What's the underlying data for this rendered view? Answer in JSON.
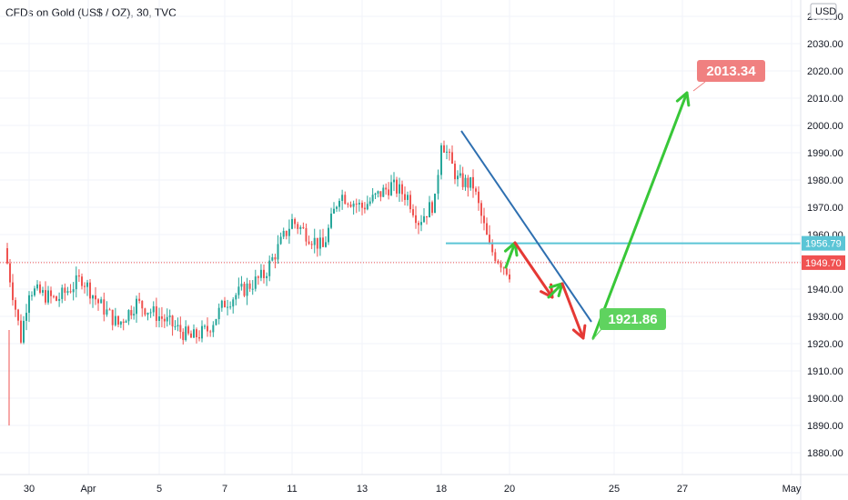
{
  "header": {
    "symbol_title": "CFDs on Gold (US$ / OZ), 30, TVC"
  },
  "currency_badge": "USD",
  "colors": {
    "up_candle": "#26a69a",
    "down_candle": "#ef5350",
    "up_arrow": "#38c738",
    "down_arrow": "#e53935",
    "trendline": "#2e6fb0",
    "hline": "#5bc5d6",
    "last_price_tag": "#f05252",
    "level_tag": "#5bc5d6",
    "target_high_tag": "#f08080",
    "target_low_tag": "#5fd35f"
  },
  "chart_data": {
    "type": "candlestick",
    "ylim": [
      1872,
      2046
    ],
    "y_ticks": [
      1880,
      1890,
      1900,
      1910,
      1920,
      1930,
      1940,
      1950,
      1960,
      1970,
      1980,
      1990,
      2000,
      2010,
      2020,
      2030,
      2040
    ],
    "y_tick_labels": [
      "1880.00",
      "1890.00",
      "1900.00",
      "1910.00",
      "1920.00",
      "1930.00",
      "1940.00",
      "1950.00",
      "1960.00",
      "1970.00",
      "1980.00",
      "1990.00",
      "2000.00",
      "2010.00",
      "2020.00",
      "2030.00",
      "2040.00"
    ],
    "x_labels": [
      "30",
      "Apr",
      "5",
      "7",
      "11",
      "13",
      "18",
      "20",
      "25",
      "27",
      "May"
    ],
    "price_path": [
      [
        "Mar 29",
        1955,
        1922
      ],
      [
        "Mar 29b",
        1890,
        1922
      ],
      [
        "Mar 30",
        1925,
        1940
      ],
      [
        "Mar 31",
        1938,
        1936
      ],
      [
        "Apr 1",
        1930,
        1944
      ],
      [
        "Apr 1b",
        1948,
        1935
      ],
      [
        "Apr 3",
        1932,
        1927
      ],
      [
        "Apr 4",
        1925,
        1935
      ],
      [
        "Apr 5",
        1933,
        1930
      ],
      [
        "Apr 6",
        1930,
        1922
      ],
      [
        "Apr 6b",
        1922,
        1925
      ],
      [
        "Apr 7",
        1925,
        1935
      ],
      [
        "Apr 10",
        1935,
        1945
      ],
      [
        "Apr 11",
        1948,
        1965
      ],
      [
        "Apr 12",
        1962,
        1955
      ],
      [
        "Apr 12b",
        1957,
        1975
      ],
      [
        "Apr 13",
        1975,
        1970
      ],
      [
        "Apr 14",
        1970,
        1978
      ],
      [
        "Apr 14b",
        1978,
        1974
      ],
      [
        "Apr 17",
        1974,
        1965
      ],
      [
        "Apr 17b",
        1966,
        1972
      ],
      [
        "Apr 18",
        1972,
        1995
      ],
      [
        "Apr 18b",
        1995,
        1980
      ],
      [
        "Apr 19",
        1980,
        1978
      ],
      [
        "Apr 19b",
        1976,
        1955
      ],
      [
        "Apr 20",
        1955,
        1946
      ]
    ],
    "annotations": {
      "horizontal_level": {
        "value": 1956.79,
        "label": "1956.79"
      },
      "last_price": {
        "value": 1949.7,
        "label": "1949.70"
      },
      "target_high": {
        "value": 2013.34,
        "label": "2013.34"
      },
      "target_low": {
        "value": 1921.86,
        "label": "1921.86"
      },
      "trendline": {
        "from": [
          "Apr 18",
          1998
        ],
        "to": [
          "Apr 24",
          1928
        ]
      },
      "arrows_down": [
        {
          "from": [
            "Apr 20",
            1957
          ],
          "to": [
            "Apr 21",
            1937
          ]
        },
        {
          "from": [
            "Apr 22",
            1942
          ],
          "to": [
            "Apr 23",
            1922
          ]
        }
      ],
      "arrows_up": [
        {
          "from": [
            "Apr 20",
            1948
          ],
          "to": [
            "Apr 20",
            1957
          ]
        },
        {
          "from": [
            "Apr 21",
            1937
          ],
          "to": [
            "Apr 22",
            1942
          ]
        },
        {
          "from": [
            "Apr 23",
            1922
          ],
          "to": [
            "Apr 27",
            2012
          ]
        }
      ]
    }
  }
}
